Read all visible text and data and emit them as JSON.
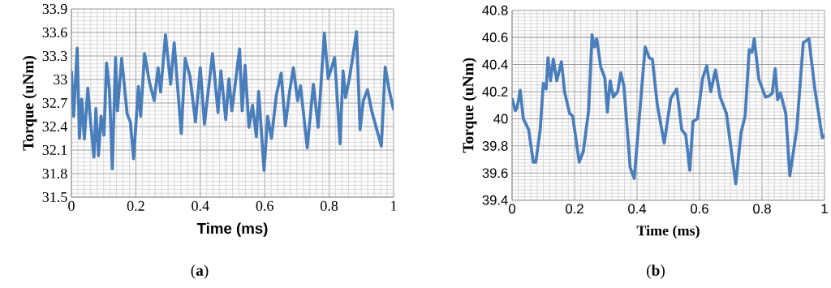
{
  "chart_data": [
    {
      "type": "line",
      "xlabel": "Time (ms)",
      "ylabel": "Torque (uNm)",
      "annotations": [
        "(**a**)"
      ],
      "grid": true,
      "color": "#4a7ebb",
      "xlim": [
        0,
        1
      ],
      "xticks": [
        0,
        0.2,
        0.4,
        0.6,
        0.8,
        1
      ],
      "ylim": [
        31.5,
        33.9
      ],
      "yticks": [
        31.5,
        31.8,
        32.1,
        32.4,
        32.7,
        33,
        33.3,
        33.6,
        33.9
      ],
      "x": [
        0,
        0.007,
        0.018,
        0.025,
        0.032,
        0.04,
        0.051,
        0.06,
        0.07,
        0.076,
        0.084,
        0.092,
        0.101,
        0.109,
        0.118,
        0.127,
        0.137,
        0.143,
        0.156,
        0.173,
        0.183,
        0.193,
        0.208,
        0.215,
        0.227,
        0.242,
        0.257,
        0.269,
        0.277,
        0.292,
        0.308,
        0.319,
        0.341,
        0.353,
        0.368,
        0.385,
        0.4,
        0.413,
        0.438,
        0.455,
        0.464,
        0.479,
        0.489,
        0.498,
        0.522,
        0.53,
        0.539,
        0.551,
        0.562,
        0.574,
        0.581,
        0.598,
        0.609,
        0.621,
        0.636,
        0.651,
        0.664,
        0.677,
        0.689,
        0.702,
        0.711,
        0.732,
        0.751,
        0.766,
        0.785,
        0.797,
        0.817,
        0.834,
        0.843,
        0.851,
        0.864,
        0.885,
        0.896,
        0.906,
        0.919,
        0.932,
        0.962,
        0.974,
        0.987,
        1.0
      ],
      "values": [
        33.11,
        32.53,
        33.4,
        32.25,
        32.75,
        32.24,
        32.89,
        32.43,
        32.01,
        32.63,
        32.03,
        32.53,
        32.29,
        33.21,
        32.87,
        31.86,
        33.28,
        32.6,
        33.27,
        32.56,
        32.46,
        31.99,
        32.91,
        32.53,
        33.33,
        32.97,
        32.73,
        33.15,
        32.84,
        33.57,
        32.94,
        33.47,
        32.31,
        33.27,
        33.04,
        32.46,
        33.15,
        32.43,
        33.33,
        32.58,
        33.11,
        32.49,
        33.01,
        32.6,
        33.39,
        32.6,
        33.18,
        32.39,
        32.67,
        32.27,
        32.85,
        31.84,
        32.53,
        32.25,
        32.8,
        33.08,
        32.41,
        32.84,
        33.15,
        32.73,
        32.92,
        32.13,
        32.94,
        32.39,
        33.59,
        33.01,
        33.28,
        32.18,
        33.11,
        32.77,
        33.04,
        33.61,
        32.36,
        32.73,
        32.87,
        32.6,
        32.15,
        33.16,
        32.85,
        32.61
      ]
    },
    {
      "type": "line",
      "xlabel": "Time (ms)",
      "ylabel": "Torque (uNm)",
      "annotations": [
        "(**b**)"
      ],
      "grid": true,
      "color": "#4a7ebb",
      "xlim": [
        0,
        1
      ],
      "xticks": [
        0,
        0.2,
        0.4,
        0.6,
        0.8,
        1
      ],
      "ylim": [
        39.4,
        40.8
      ],
      "yticks": [
        39.4,
        39.6,
        39.8,
        40,
        40.2,
        40.4,
        40.6,
        40.8
      ],
      "x": [
        0,
        0.01,
        0.016,
        0.026,
        0.036,
        0.053,
        0.068,
        0.076,
        0.09,
        0.1,
        0.109,
        0.115,
        0.123,
        0.132,
        0.143,
        0.158,
        0.168,
        0.184,
        0.194,
        0.215,
        0.228,
        0.245,
        0.256,
        0.264,
        0.271,
        0.284,
        0.297,
        0.305,
        0.314,
        0.324,
        0.338,
        0.348,
        0.358,
        0.378,
        0.391,
        0.426,
        0.439,
        0.449,
        0.465,
        0.487,
        0.508,
        0.527,
        0.543,
        0.556,
        0.569,
        0.579,
        0.593,
        0.61,
        0.623,
        0.636,
        0.651,
        0.666,
        0.686,
        0.716,
        0.733,
        0.746,
        0.759,
        0.768,
        0.775,
        0.79,
        0.811,
        0.824,
        0.833,
        0.842,
        0.85,
        0.859,
        0.876,
        0.889,
        0.911,
        0.932,
        0.95,
        0.969,
        0.993,
        1.0
      ],
      "values": [
        40.15,
        40.06,
        40.08,
        40.21,
        40.0,
        39.92,
        39.68,
        39.68,
        39.92,
        40.26,
        40.22,
        40.45,
        40.28,
        40.44,
        40.28,
        40.42,
        40.2,
        40.04,
        40.02,
        39.68,
        39.76,
        40.06,
        40.62,
        40.53,
        40.59,
        40.38,
        40.3,
        40.05,
        40.28,
        40.16,
        40.2,
        40.34,
        40.24,
        39.64,
        39.56,
        40.53,
        40.45,
        40.44,
        40.1,
        39.82,
        40.15,
        40.22,
        39.92,
        39.88,
        39.62,
        39.98,
        40.0,
        40.3,
        40.39,
        40.2,
        40.36,
        40.16,
        40.04,
        39.52,
        39.9,
        40.02,
        40.51,
        40.49,
        40.59,
        40.29,
        40.16,
        40.17,
        40.19,
        40.37,
        40.14,
        40.19,
        40.04,
        39.58,
        39.92,
        40.56,
        40.59,
        40.22,
        39.86,
        39.88
      ]
    }
  ]
}
